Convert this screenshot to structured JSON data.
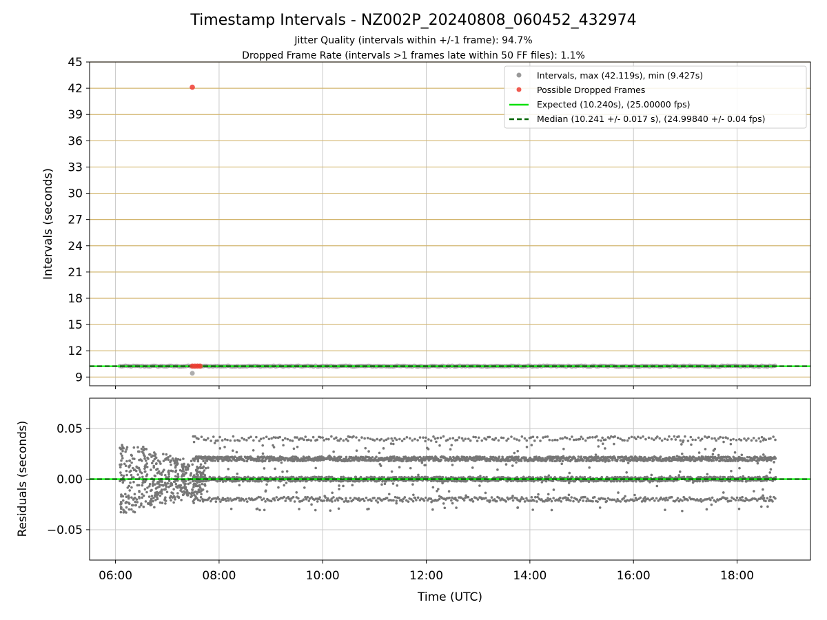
{
  "figure": {
    "title": "Timestamp Intervals - NZ002P_20240808_060452_432974",
    "subtitle1": "Jitter Quality (intervals within +/-1 frame): 94.7%",
    "subtitle2": "Dropped Frame Rate (intervals >1 frames late within 50 FF files): 1.1%"
  },
  "chart_data": [
    {
      "type": "scatter",
      "ylabel": "Intervals (seconds)",
      "xlim": [
        "05:30",
        "19:25"
      ],
      "ylim": [
        8,
        45
      ],
      "yticks": [
        9,
        12,
        15,
        18,
        21,
        24,
        27,
        30,
        33,
        36,
        39,
        42,
        45
      ],
      "xticks": [
        "06:00",
        "08:00",
        "10:00",
        "12:00",
        "14:00",
        "16:00",
        "18:00"
      ],
      "grid": true,
      "legend_position": "top-right",
      "colors": {
        "intervals": "#808080",
        "dropped": "#ff0000",
        "expected": "#00ff00",
        "median": "#006400",
        "hgrid": "#d2b56e",
        "vgrid": "#c8c8c8"
      },
      "expected_line": 10.24,
      "median_line": 10.241,
      "series": [
        {
          "name": "Intervals, max (42.119s), min (9.427s)",
          "kind": "band",
          "x_range": [
            "06:05",
            "18:45"
          ],
          "y_value": 10.24
        },
        {
          "name": "Intervals outlier",
          "kind": "points",
          "points": [
            {
              "x": "07:29",
              "y": 9.427
            }
          ]
        },
        {
          "name": "Possible Dropped Frames",
          "kind": "points",
          "points": [
            {
              "x": "07:29",
              "y": 42.119
            },
            {
              "x": "07:29",
              "y": 10.25
            },
            {
              "x": "07:32",
              "y": 10.25
            },
            {
              "x": "07:35",
              "y": 10.25
            },
            {
              "x": "07:38",
              "y": 10.25
            }
          ]
        }
      ],
      "legend": [
        {
          "label": "Intervals, max (42.119s), min (9.427s)",
          "marker": "dot",
          "color": "#999999"
        },
        {
          "label": "Possible Dropped Frames",
          "marker": "dot",
          "color": "#f05a50"
        },
        {
          "label": "Expected (10.240s), (25.00000 fps)",
          "marker": "line",
          "color": "#00e000"
        },
        {
          "label": "Median (10.241 +/- 0.017 s), (24.99840 +/- 0.04 fps)",
          "marker": "dashed",
          "color": "#006400"
        }
      ]
    },
    {
      "type": "scatter",
      "xlabel": "Time (UTC)",
      "ylabel": "Residuals (seconds)",
      "xlim": [
        "05:30",
        "19:25"
      ],
      "ylim": [
        -0.08,
        0.08
      ],
      "yticks": [
        0.05,
        0.0,
        -0.05
      ],
      "ytick_labels": [
        "0.05",
        "0.00",
        "−0.05"
      ],
      "xticks": [
        "06:00",
        "08:00",
        "10:00",
        "12:00",
        "14:00",
        "16:00",
        "18:00"
      ],
      "grid": true,
      "zero_line": 0.0,
      "residual_bands": [
        {
          "y": 0.04,
          "density": "sparse"
        },
        {
          "y": 0.02,
          "density": "dense"
        },
        {
          "y": 0.0,
          "density": "dense"
        },
        {
          "y": -0.02,
          "density": "medium"
        }
      ],
      "early_scatter_range": {
        "x": [
          "06:05",
          "07:45"
        ],
        "y": [
          -0.045,
          0.052
        ]
      },
      "x_extent": [
        "06:05",
        "18:45"
      ]
    }
  ]
}
